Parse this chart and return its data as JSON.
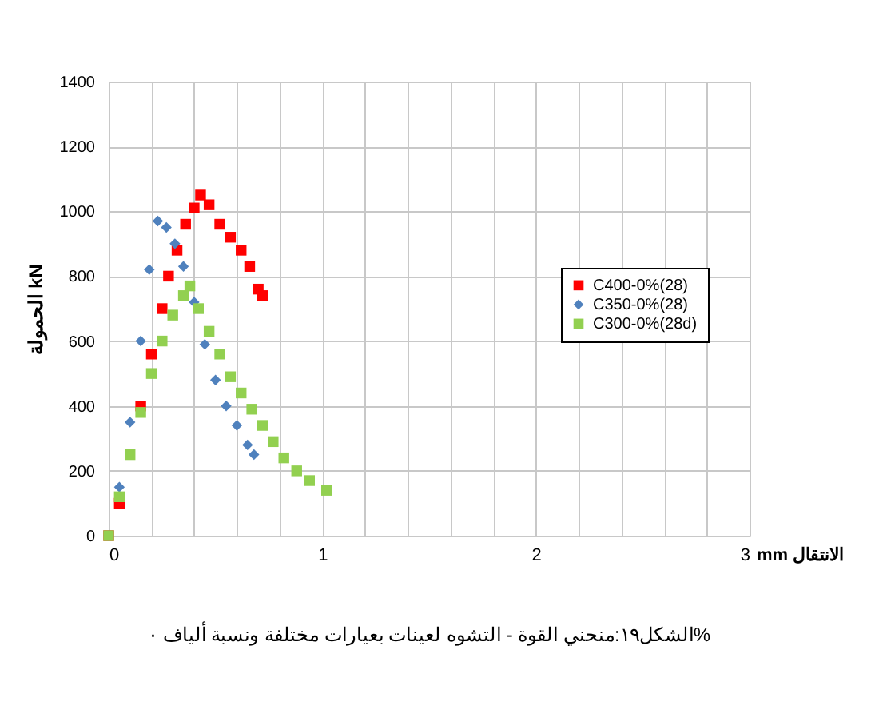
{
  "chart_data": {
    "type": "scatter",
    "xlabel": "mm الانتقال",
    "ylabel": "الحمولة kN",
    "annotations": [
      "الشكل١٩:منحني القوة - التشوه لعينات بعيارات مختلفة ونسبة ألياف ٠%"
    ],
    "xlim": [
      0,
      3
    ],
    "xticks": [
      0,
      {
        "value": 0.2,
        "label": null
      },
      {
        "value": 0.4,
        "label": null
      },
      {
        "value": 0.6,
        "label": null
      },
      {
        "value": 0.8,
        "label": null
      },
      1,
      {
        "value": 1.2,
        "label": null
      },
      {
        "value": 1.4,
        "label": null
      },
      {
        "value": 1.6,
        "label": null
      },
      {
        "value": 1.8,
        "label": null
      },
      2,
      {
        "value": 2.2,
        "label": null
      },
      {
        "value": 2.4,
        "label": null
      },
      {
        "value": 2.6,
        "label": null
      },
      {
        "value": 2.8,
        "label": null
      },
      3
    ],
    "ylim": [
      0,
      1400
    ],
    "yticks": [
      0,
      200,
      400,
      600,
      800,
      1000,
      1200,
      1400
    ],
    "grid": true,
    "legend": "right",
    "series": [
      {
        "name": "C400-0%(28)",
        "color": "#ff0000",
        "marker": "square",
        "x": [
          0,
          0.05,
          0.1,
          0.15,
          0.2,
          0.25,
          0.28,
          0.32,
          0.36,
          0.4,
          0.43,
          0.47,
          0.52,
          0.57,
          0.62,
          0.66,
          0.7,
          0.72
        ],
        "values": [
          0,
          100,
          null,
          400,
          560,
          700,
          800,
          880,
          960,
          1010,
          1050,
          1020,
          960,
          920,
          880,
          830,
          760,
          740
        ]
      },
      {
        "name": "C350-0%(28)",
        "color": "#4f81bd",
        "marker": "diamond",
        "x": [
          0,
          0.05,
          0.1,
          0.15,
          0.19,
          0.23,
          0.27,
          0.31,
          0.35,
          0.4,
          0.45,
          0.5,
          0.55,
          0.6,
          0.65,
          0.68
        ],
        "values": [
          0,
          150,
          350,
          600,
          820,
          970,
          950,
          900,
          830,
          720,
          590,
          480,
          400,
          340,
          280,
          250
        ]
      },
      {
        "name": "C300-0%(28d)",
        "color": "#92d050",
        "marker": "square",
        "x": [
          0,
          0.05,
          0.1,
          0.15,
          0.2,
          0.25,
          0.3,
          0.35,
          0.38,
          0.42,
          0.47,
          0.52,
          0.57,
          0.62,
          0.67,
          0.72,
          0.77,
          0.82,
          0.88,
          0.94,
          1.02
        ],
        "values": [
          0,
          120,
          250,
          380,
          500,
          600,
          680,
          740,
          770,
          700,
          630,
          560,
          490,
          440,
          390,
          340,
          290,
          240,
          200,
          170,
          140
        ]
      }
    ]
  }
}
